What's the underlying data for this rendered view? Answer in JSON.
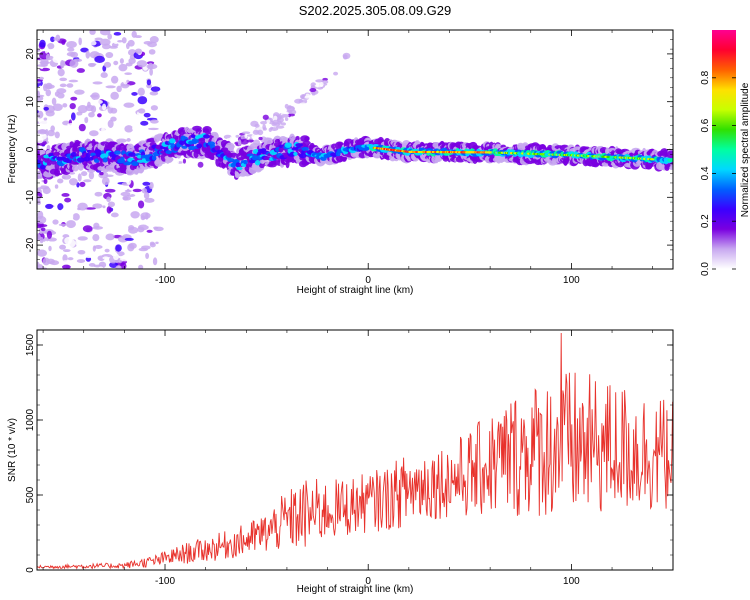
{
  "title": "S202.2025.305.08.09.G29",
  "chart_data": [
    {
      "type": "heatmap",
      "xlabel": "Height of straight line (km)",
      "ylabel": "Frequency (Hz)",
      "xlim": [
        -163,
        150
      ],
      "ylim": [
        -25,
        25
      ],
      "x_ticks": [
        -100,
        0,
        100
      ],
      "y_ticks": [
        20,
        10,
        0,
        -10,
        -20
      ],
      "ridge": [
        {
          "x": -163,
          "y": -3
        },
        {
          "x": -140,
          "y": -1
        },
        {
          "x": -115,
          "y": -2
        },
        {
          "x": -95,
          "y": 1
        },
        {
          "x": -80,
          "y": 2
        },
        {
          "x": -65,
          "y": -3
        },
        {
          "x": -50,
          "y": -1
        },
        {
          "x": -35,
          "y": 0
        },
        {
          "x": -22,
          "y": -1.5
        },
        {
          "x": -10,
          "y": 0
        },
        {
          "x": 0,
          "y": 0.5
        },
        {
          "x": 20,
          "y": -0.5
        },
        {
          "x": 60,
          "y": -0.6
        },
        {
          "x": 100,
          "y": -1.2
        },
        {
          "x": 130,
          "y": -1.8
        },
        {
          "x": 150,
          "y": -2.3
        }
      ],
      "colorbar": {
        "label": "Normalized spectral amplitude",
        "ticks": [
          "0.0",
          "0.2",
          "0.4",
          "0.6",
          "0.8"
        ],
        "range": [
          0,
          1
        ],
        "colors": [
          "#ffffff",
          "#c8a8f0",
          "#7a00e0",
          "#3a00ff",
          "#0060ff",
          "#00d8ff",
          "#00ffa0",
          "#30e000",
          "#c8ff00",
          "#ffe000",
          "#ff6000",
          "#ff0030",
          "#ff0090"
        ]
      }
    },
    {
      "type": "line",
      "xlabel": "Height of straight line (km)",
      "ylabel": "SNR (10 * v/v)",
      "xlim": [
        -163,
        150
      ],
      "ylim": [
        0,
        1600
      ],
      "x_ticks": [
        -100,
        0,
        100
      ],
      "y_ticks": [
        0,
        500,
        1000,
        1500
      ],
      "color": "#e8322c",
      "series": [
        {
          "name": "SNR",
          "envelope": {
            "x": [
              -163,
              -140,
              -120,
              -105,
              -90,
              -75,
              -60,
              -50,
              -40,
              -30,
              -20,
              -10,
              0,
              10,
              20,
              30,
              40,
              50,
              60,
              70,
              80,
              90,
              100,
              110,
              120,
              130,
              140,
              150
            ],
            "mean": [
              20,
              25,
              30,
              60,
              110,
              150,
              200,
              250,
              330,
              370,
              400,
              420,
              450,
              480,
              540,
              580,
              600,
              640,
              700,
              760,
              800,
              820,
              830,
              820,
              820,
              800,
              780,
              760
            ],
            "amplitude": [
              10,
              15,
              20,
              40,
              70,
              90,
              110,
              140,
              200,
              250,
              200,
              200,
              200,
              220,
              250,
              250,
              250,
              300,
              350,
              420,
              450,
              480,
              520,
              480,
              450,
              430,
              400,
              380
            ]
          },
          "peak": {
            "x": 95,
            "y": 1580
          }
        }
      ]
    }
  ]
}
